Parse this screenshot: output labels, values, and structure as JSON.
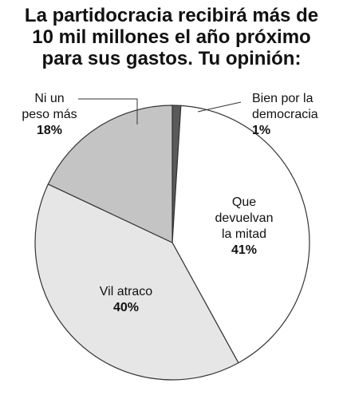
{
  "title_lines": [
    "La partidocracia recibirá más de",
    "10 mil millones el año próximo",
    "para sus gastos. Tu opinión:"
  ],
  "chart_data": {
    "type": "pie",
    "title": "La partidocracia recibirá más de 10 mil millones el año próximo para sus gastos. Tu opinión:",
    "slices": [
      {
        "label_lines": [
          "Bien por la",
          "democracia"
        ],
        "value": 1,
        "value_label": "1%",
        "color": "#5a5a5a"
      },
      {
        "label_lines": [
          "Que",
          "devuelvan",
          "la mitad"
        ],
        "value": 41,
        "value_label": "41%",
        "color": "#ffffff"
      },
      {
        "label_lines": [
          "Vil atraco"
        ],
        "value": 40,
        "value_label": "40%",
        "color": "#e6e6e6"
      },
      {
        "label_lines": [
          "Ni un",
          "peso más"
        ],
        "value": 18,
        "value_label": "18%",
        "color": "#c4c4c4"
      }
    ],
    "start_angle_deg": 0,
    "direction": "clockwise"
  }
}
